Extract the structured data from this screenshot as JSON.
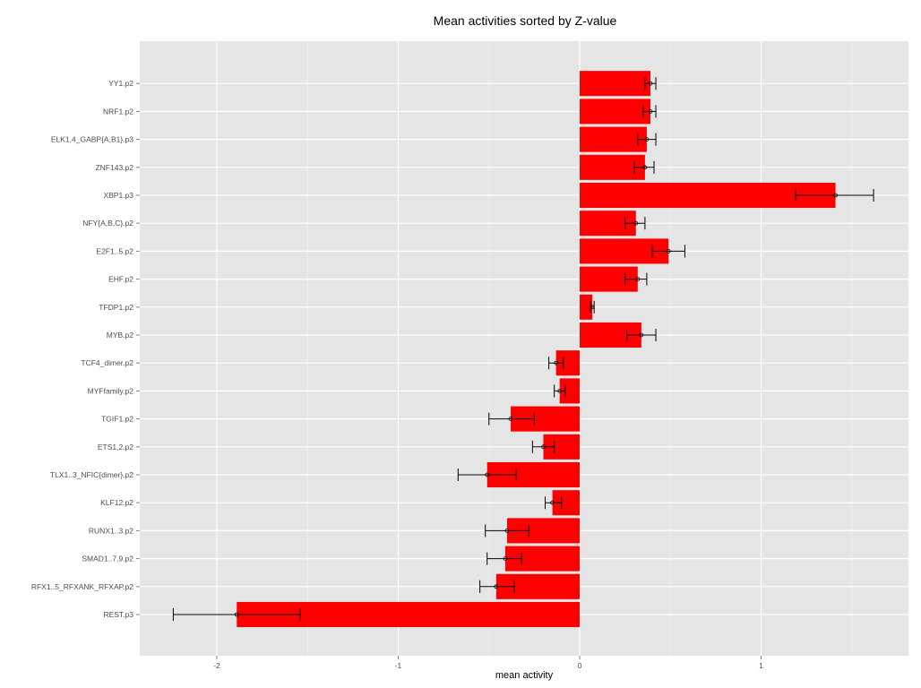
{
  "chart_data": {
    "type": "bar",
    "orientation": "horizontal",
    "title": "Mean activities sorted by Z-value",
    "xlabel": "mean activity",
    "ylabel": "",
    "xlim": [
      -2.4,
      1.8
    ],
    "xticks": [
      -2,
      -1,
      0,
      1
    ],
    "grid": true,
    "legend": "none",
    "bar_color": "#ff0000",
    "panel_color": "#e5e5e5",
    "categories": [
      "YY1.p2",
      "NRF1.p2",
      "ELK1,4_GABP{A,B1}.p3",
      "ZNF143.p2",
      "XBP1.p3",
      "NFY{A,B,C}.p2",
      "E2F1..5.p2",
      "EHF.p2",
      "TFDP1.p2",
      "MYB.p2",
      "TCF4_dimer.p2",
      "MYFfamily.p2",
      "TGIF1.p2",
      "ETS1,2.p2",
      "TLX1..3_NFIC{dimer}.p2",
      "KLF12.p2",
      "RUNX1..3.p2",
      "SMAD1..7,9.p2",
      "RFX1..5_RFXANK_RFXAP.p2",
      "REST.p3"
    ],
    "values": [
      0.39,
      0.39,
      0.37,
      0.36,
      1.41,
      0.31,
      0.49,
      0.32,
      0.07,
      0.34,
      -0.13,
      -0.11,
      -0.38,
      -0.2,
      -0.51,
      -0.15,
      -0.4,
      -0.41,
      -0.46,
      -1.89
    ],
    "error_low": [
      0.36,
      0.35,
      0.32,
      0.3,
      1.19,
      0.25,
      0.4,
      0.25,
      0.06,
      0.26,
      -0.17,
      -0.14,
      -0.5,
      -0.26,
      -0.67,
      -0.19,
      -0.52,
      -0.51,
      -0.55,
      -2.24
    ],
    "error_high": [
      0.42,
      0.42,
      0.42,
      0.41,
      1.62,
      0.36,
      0.58,
      0.37,
      0.08,
      0.42,
      -0.09,
      -0.08,
      -0.25,
      -0.14,
      -0.35,
      -0.1,
      -0.28,
      -0.32,
      -0.36,
      -1.54
    ]
  }
}
